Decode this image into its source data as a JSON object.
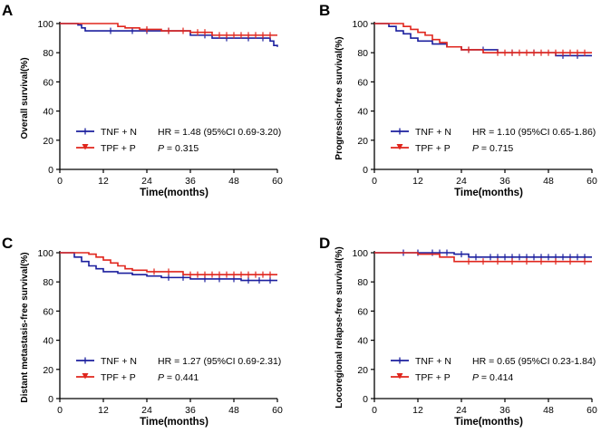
{
  "colors": {
    "tnf": "#1b1f9e",
    "tpf": "#e0261d",
    "axis": "#000000"
  },
  "chart_data": [
    {
      "type": "line",
      "letter": "A",
      "title": "",
      "xlabel": "Time(months)",
      "ylabel": "Overall survival(%)",
      "xlim": [
        0,
        60
      ],
      "ylim": [
        0,
        100
      ],
      "xticks": [
        "0",
        "12",
        "24",
        "36",
        "48",
        "60"
      ],
      "yticks": [
        "0",
        "20",
        "40",
        "60",
        "80",
        "100"
      ],
      "legend": [
        {
          "name": "TNF + N",
          "stat_prefix": "",
          "stat": "HR = 1.48 (95%CI 0.69-3.20)"
        },
        {
          "name": "TPF + P",
          "stat_prefix": "P",
          "stat": " = 0.315"
        }
      ],
      "series": [
        {
          "name": "TNF + N",
          "x": [
            0,
            5,
            6,
            7,
            36,
            42,
            58,
            59,
            60
          ],
          "y": [
            100,
            99,
            97,
            95,
            92,
            90,
            88,
            85,
            84
          ],
          "censor": [
            14,
            20,
            24,
            30,
            40,
            46,
            52,
            56
          ]
        },
        {
          "name": "TPF + P",
          "x": [
            0,
            13,
            16,
            18,
            22,
            28,
            36,
            42,
            60
          ],
          "y": [
            100,
            100,
            98,
            97,
            96,
            95,
            94,
            92,
            92
          ],
          "censor": [
            24,
            30,
            34,
            38,
            40,
            44,
            46,
            48,
            50,
            52,
            54,
            56,
            58
          ]
        }
      ]
    },
    {
      "type": "line",
      "letter": "B",
      "title": "",
      "xlabel": "Time(months)",
      "ylabel": "Progression-free survival(%)",
      "xlim": [
        0,
        60
      ],
      "ylim": [
        0,
        100
      ],
      "xticks": [
        "0",
        "12",
        "24",
        "36",
        "48",
        "60"
      ],
      "yticks": [
        "0",
        "20",
        "40",
        "60",
        "80",
        "100"
      ],
      "legend": [
        {
          "name": "TNF + N",
          "stat_prefix": "",
          "stat": "HR = 1.10 (95%CI 0.65-1.86)"
        },
        {
          "name": "TPF + P",
          "stat_prefix": "P",
          "stat": " = 0.715"
        }
      ],
      "series": [
        {
          "name": "TNF + N",
          "x": [
            0,
            4,
            6,
            8,
            10,
            12,
            16,
            20,
            24,
            34,
            50,
            60
          ],
          "y": [
            100,
            98,
            95,
            93,
            90,
            88,
            86,
            84,
            82,
            80,
            78,
            78
          ],
          "censor": [
            26,
            30,
            38,
            44,
            52,
            56
          ]
        },
        {
          "name": "TPF + P",
          "x": [
            0,
            6,
            8,
            10,
            12,
            14,
            16,
            18,
            20,
            24,
            30,
            60
          ],
          "y": [
            100,
            100,
            98,
            96,
            94,
            92,
            89,
            87,
            84,
            82,
            80,
            80
          ],
          "censor": [
            26,
            34,
            36,
            38,
            40,
            42,
            44,
            46,
            48,
            50,
            52,
            54,
            56,
            58
          ]
        }
      ]
    },
    {
      "type": "line",
      "letter": "C",
      "title": "",
      "xlabel": "Time(months)",
      "ylabel": "Distant metastasis-free survival(%)",
      "xlim": [
        0,
        60
      ],
      "ylim": [
        0,
        100
      ],
      "xticks": [
        "0",
        "12",
        "24",
        "36",
        "48",
        "60"
      ],
      "yticks": [
        "0",
        "20",
        "40",
        "60",
        "80",
        "100"
      ],
      "legend": [
        {
          "name": "TNF + N",
          "stat_prefix": "",
          "stat": "HR = 1.27 (95%CI 0.69-2.31)"
        },
        {
          "name": "TPF + P",
          "stat_prefix": "P",
          "stat": " = 0.441"
        }
      ],
      "series": [
        {
          "name": "TNF + N",
          "x": [
            0,
            4,
            6,
            8,
            10,
            12,
            16,
            20,
            24,
            28,
            36,
            50,
            60
          ],
          "y": [
            100,
            97,
            94,
            91,
            89,
            87,
            86,
            85,
            84,
            83,
            82,
            81,
            81
          ],
          "censor": [
            30,
            34,
            40,
            44,
            48,
            52,
            55,
            58
          ]
        },
        {
          "name": "TPF + P",
          "x": [
            0,
            6,
            8,
            10,
            12,
            14,
            16,
            18,
            20,
            24,
            34,
            60
          ],
          "y": [
            100,
            100,
            99,
            97,
            95,
            93,
            91,
            89,
            88,
            87,
            85,
            85
          ],
          "censor": [
            26,
            30,
            36,
            38,
            40,
            42,
            44,
            46,
            48,
            50,
            52,
            54,
            56,
            58
          ]
        }
      ]
    },
    {
      "type": "line",
      "letter": "D",
      "title": "",
      "xlabel": "Time(months)",
      "ylabel": "Locoregional relapse-free survival(%)",
      "xlim": [
        0,
        60
      ],
      "ylim": [
        0,
        100
      ],
      "xticks": [
        "0",
        "12",
        "24",
        "36",
        "48",
        "60"
      ],
      "yticks": [
        "0",
        "20",
        "40",
        "60",
        "80",
        "100"
      ],
      "legend": [
        {
          "name": "TNF + N",
          "stat_prefix": "",
          "stat": "HR = 0.65 (95%CI 0.23-1.84)"
        },
        {
          "name": "TPF + P",
          "stat_prefix": "P",
          "stat": " = 0.414"
        }
      ],
      "series": [
        {
          "name": "TNF + N",
          "x": [
            0,
            22,
            26,
            60
          ],
          "y": [
            100,
            99,
            97,
            97
          ],
          "censor": [
            8,
            12,
            16,
            18,
            20,
            24,
            28,
            32,
            34,
            36,
            38,
            40,
            42,
            44,
            46,
            48,
            50,
            52,
            54,
            56,
            58
          ]
        },
        {
          "name": "TPF + P",
          "x": [
            0,
            12,
            18,
            22,
            60
          ],
          "y": [
            100,
            99,
            97,
            94,
            94
          ],
          "censor": [
            26,
            30,
            34,
            38,
            42,
            46,
            50,
            54,
            58
          ]
        }
      ]
    }
  ]
}
